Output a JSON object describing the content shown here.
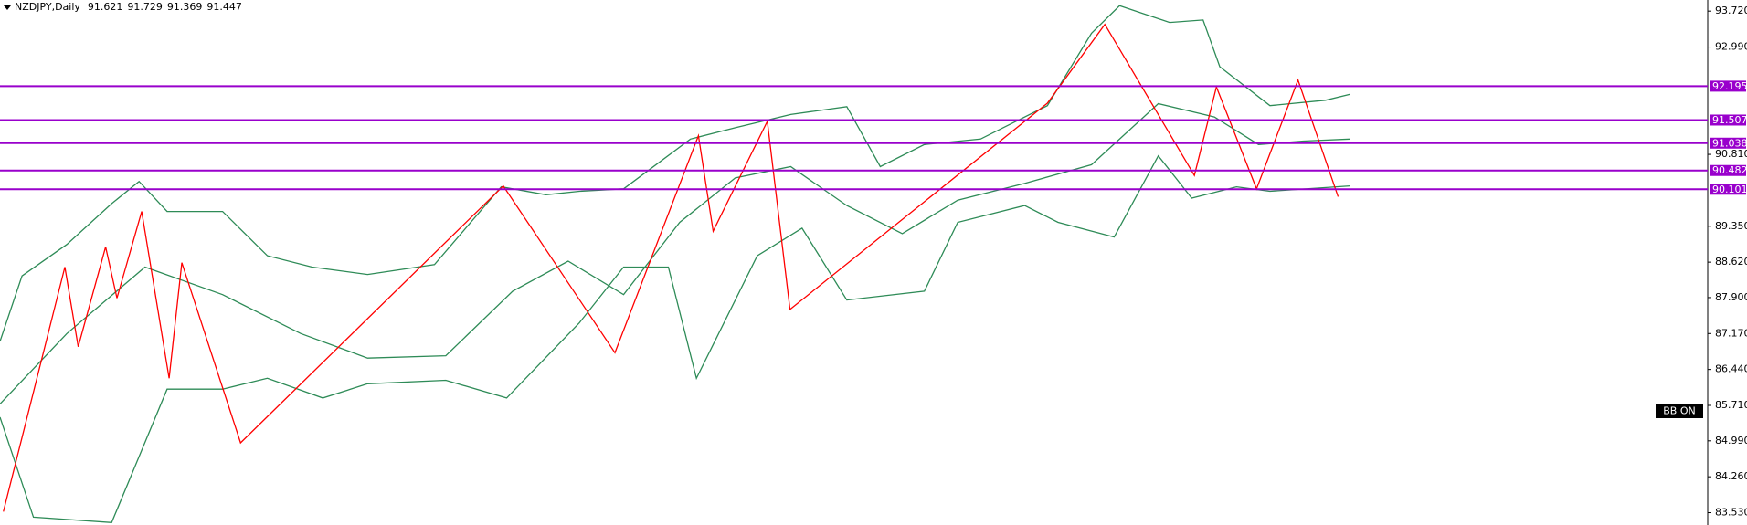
{
  "chart_data": {
    "type": "line",
    "title": "NZDJPY,Daily",
    "last_bar": [
      91.621,
      91.729,
      91.369,
      91.447
    ],
    "annotation": "BB ON",
    "xlim": [
      0,
      255.5
    ],
    "ylim": [
      83.28,
      93.946
    ],
    "yticks": [
      {
        "value": 93.72,
        "label": "93.720"
      },
      {
        "value": 92.99,
        "label": "92.990"
      },
      {
        "value": 90.81,
        "label": "90.810"
      },
      {
        "value": 89.35,
        "label": "89.350"
      },
      {
        "value": 88.62,
        "label": "88.620"
      },
      {
        "value": 87.9,
        "label": "87.900"
      },
      {
        "value": 87.17,
        "label": "87.170"
      },
      {
        "value": 86.44,
        "label": "86.440"
      },
      {
        "value": 85.71,
        "label": "85.710"
      },
      {
        "value": 84.99,
        "label": "84.990"
      },
      {
        "value": 84.26,
        "label": "84.260"
      },
      {
        "value": 83.53,
        "label": "83.530"
      }
    ],
    "levels": [
      92.195,
      91.507,
      91.038,
      90.482,
      90.101
    ],
    "level_color": "#9900cc",
    "series": [
      {
        "color": "#2e8b57",
        "x": [
          0,
          3.3,
          10,
          16.7,
          20.8,
          25,
          33.3,
          40,
          46.7,
          55,
          65,
          75,
          81.7,
          86.7,
          93.3,
          103.3,
          110,
          118.3,
          126.7,
          131.7,
          138.3,
          146.7,
          156.7,
          163.3,
          167.5,
          175,
          180,
          182.5,
          190,
          198.3,
          202
        ],
        "values": [
          87.01,
          88.34,
          88.98,
          89.81,
          90.26,
          89.65,
          89.65,
          88.75,
          88.52,
          88.37,
          88.57,
          90.15,
          89.99,
          90.06,
          90.11,
          91.12,
          91.35,
          91.62,
          91.78,
          90.56,
          91.01,
          91.12,
          91.8,
          93.27,
          93.83,
          93.49,
          93.54,
          92.59,
          91.8,
          91.91,
          92.03
        ]
      },
      {
        "color": "#2e8b57",
        "x": [
          0,
          10,
          21.7,
          33.3,
          45,
          55,
          66.7,
          76.7,
          85,
          93.3,
          101.7,
          110,
          118.3,
          126.7,
          135,
          143.3,
          153.3,
          163.3,
          173.3,
          181.7,
          188.3,
          195,
          202
        ],
        "values": [
          85.74,
          87.17,
          88.52,
          87.96,
          87.17,
          86.67,
          86.72,
          88.03,
          88.64,
          87.96,
          89.43,
          90.33,
          90.56,
          89.77,
          89.2,
          89.88,
          90.22,
          90.6,
          91.84,
          91.57,
          91.01,
          91.08,
          91.12
        ]
      },
      {
        "color": "#2e8b57",
        "x": [
          0,
          5,
          16.7,
          25,
          33.3,
          40,
          48.3,
          55,
          66.7,
          75.8,
          86.7,
          93.3,
          100,
          104.2,
          113.3,
          120,
          126.7,
          138.3,
          143.3,
          153.3,
          158.3,
          166.7,
          173.3,
          178.3,
          185,
          190,
          202
        ],
        "values": [
          85.47,
          83.44,
          83.33,
          86.04,
          86.04,
          86.26,
          85.86,
          86.15,
          86.22,
          85.86,
          87.39,
          88.52,
          88.52,
          86.26,
          88.75,
          89.31,
          87.85,
          88.03,
          89.43,
          89.77,
          89.43,
          89.13,
          90.78,
          89.92,
          90.15,
          90.06,
          90.17
        ]
      },
      {
        "color": "#ff0000",
        "x": [
          0.5,
          9.7,
          11.7,
          15.8,
          17.5,
          21.2,
          25.3,
          27.2,
          36,
          75.3,
          92,
          104.5,
          106.7,
          114.8,
          118.2,
          156.7,
          165.3,
          178.7,
          182,
          188,
          194.2,
          200.2
        ],
        "values": [
          83.55,
          88.52,
          86.9,
          88.93,
          87.89,
          89.65,
          86.26,
          88.61,
          84.95,
          90.17,
          86.78,
          91.19,
          89.25,
          91.48,
          87.66,
          91.85,
          93.45,
          90.38,
          92.18,
          90.11,
          92.32,
          89.95
        ]
      }
    ]
  }
}
